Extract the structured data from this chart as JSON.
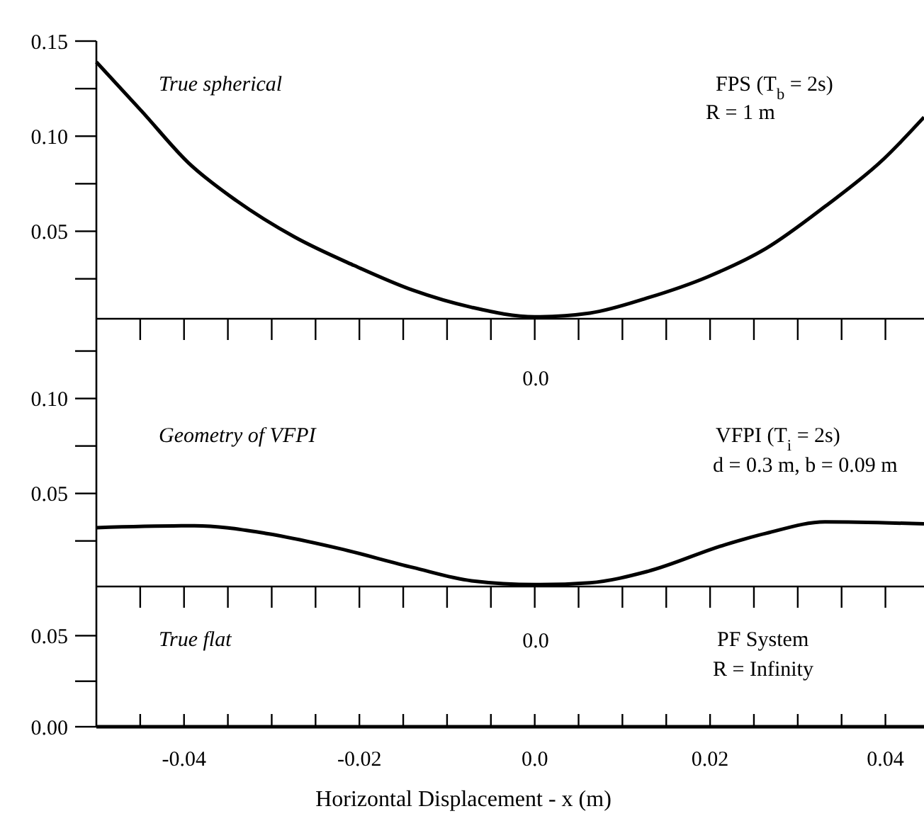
{
  "chart_data": [
    {
      "type": "line",
      "x": [
        -0.05,
        -0.0448,
        -0.0395,
        -0.034,
        -0.0274,
        -0.0206,
        -0.0139,
        -0.0072,
        0,
        0.0063,
        0.0129,
        0.0197,
        0.0264,
        0.0331,
        0.0398,
        0.0444
      ],
      "series": [
        {
          "color": "#000000",
          "values": [
            0.139,
            0.113,
            0.086,
            0.066,
            0.047,
            0.032,
            0.019,
            0.01,
            0.005,
            0.007,
            0.015,
            0.026,
            0.041,
            0.063,
            0.088,
            0.11
          ]
        }
      ],
      "xlim": [
        -0.05,
        0.0444
      ],
      "ylim": [
        0.004,
        0.15
      ],
      "xticks": [
        -0.045,
        -0.04,
        -0.035,
        -0.03,
        -0.025,
        -0.02,
        -0.015,
        -0.01,
        -0.005,
        0,
        0.005,
        0.01,
        0.015,
        0.02,
        0.025,
        0.03,
        0.035,
        0.04
      ],
      "yticks": [
        {
          "value": 0.025,
          "label": null
        },
        {
          "value": 0.05,
          "label": "0.05"
        },
        {
          "value": 0.075,
          "label": null
        },
        {
          "value": 0.1,
          "label": "0.10"
        },
        {
          "value": 0.125,
          "label": null
        },
        {
          "value": 0.15,
          "label": "0.15"
        }
      ],
      "tick_labels": "y",
      "annotations": [
        "True spherical",
        "FPS (T$_{b}$ = 2s)",
        "R = 1 m",
        "0.0"
      ]
    },
    {
      "type": "line",
      "x": [
        -0.05,
        -0.0388,
        -0.0307,
        -0.0223,
        -0.0139,
        -0.0072,
        0,
        0.0063,
        0.0129,
        0.0217,
        0.0264,
        0.0331,
        0.0444
      ],
      "series": [
        {
          "color": "#000000",
          "values": [
            0.032,
            0.033,
            0.029,
            0.021,
            0.011,
            0.004,
            0.002,
            0.003,
            0.009,
            0.023,
            0.029,
            0.035,
            0.034
          ]
        }
      ],
      "xlim": [
        -0.05,
        0.0444
      ],
      "ylim": [
        0.001,
        0.142
      ],
      "xticks": [
        -0.045,
        -0.04,
        -0.035,
        -0.03,
        -0.025,
        -0.02,
        -0.015,
        -0.01,
        -0.005,
        0,
        0.005,
        0.01,
        0.015,
        0.02,
        0.025,
        0.03,
        0.035,
        0.04
      ],
      "yticks": [
        {
          "value": 0.025,
          "label": null
        },
        {
          "value": 0.05,
          "label": "0.05"
        },
        {
          "value": 0.075,
          "label": null
        },
        {
          "value": 0.1,
          "label": "0.10"
        },
        {
          "value": 0.125,
          "label": null
        }
      ],
      "tick_labels": "y",
      "annotations": [
        "Geometry of VFPI",
        "VFPI (T$_{i}$ = 2s)",
        "d = 0.3 m, b = 0.09 m",
        "0.0"
      ]
    },
    {
      "type": "line",
      "x": [
        -0.05,
        0.0444
      ],
      "series": [
        {
          "color": "#000000",
          "values": [
            0,
            0
          ]
        }
      ],
      "xlim": [
        -0.05,
        0.0444
      ],
      "ylim": [
        0,
        0.077
      ],
      "xticks": [
        {
          "value": -0.045,
          "label": null
        },
        {
          "value": -0.04,
          "label": "-0.04"
        },
        {
          "value": -0.035,
          "label": null
        },
        {
          "value": -0.03,
          "label": null
        },
        {
          "value": -0.025,
          "label": null
        },
        {
          "value": -0.02,
          "label": "-0.02"
        },
        {
          "value": -0.015,
          "label": null
        },
        {
          "value": -0.01,
          "label": null
        },
        {
          "value": -0.005,
          "label": null
        },
        {
          "value": 0,
          "label": "0.0"
        },
        {
          "value": 0.005,
          "label": null
        },
        {
          "value": 0.01,
          "label": null
        },
        {
          "value": 0.015,
          "label": null
        },
        {
          "value": 0.02,
          "label": "0.02"
        },
        {
          "value": 0.025,
          "label": null
        },
        {
          "value": 0.03,
          "label": null
        },
        {
          "value": 0.035,
          "label": null
        },
        {
          "value": 0.04,
          "label": "0.04"
        }
      ],
      "yticks": [
        {
          "value": 0,
          "label": "0.00"
        },
        {
          "value": 0.025,
          "label": null
        },
        {
          "value": 0.05,
          "label": "0.05"
        }
      ],
      "xlabel": "Horizontal Displacement - x (m)",
      "annotations": [
        "True flat",
        "PF System",
        "R = Infinity"
      ]
    }
  ]
}
